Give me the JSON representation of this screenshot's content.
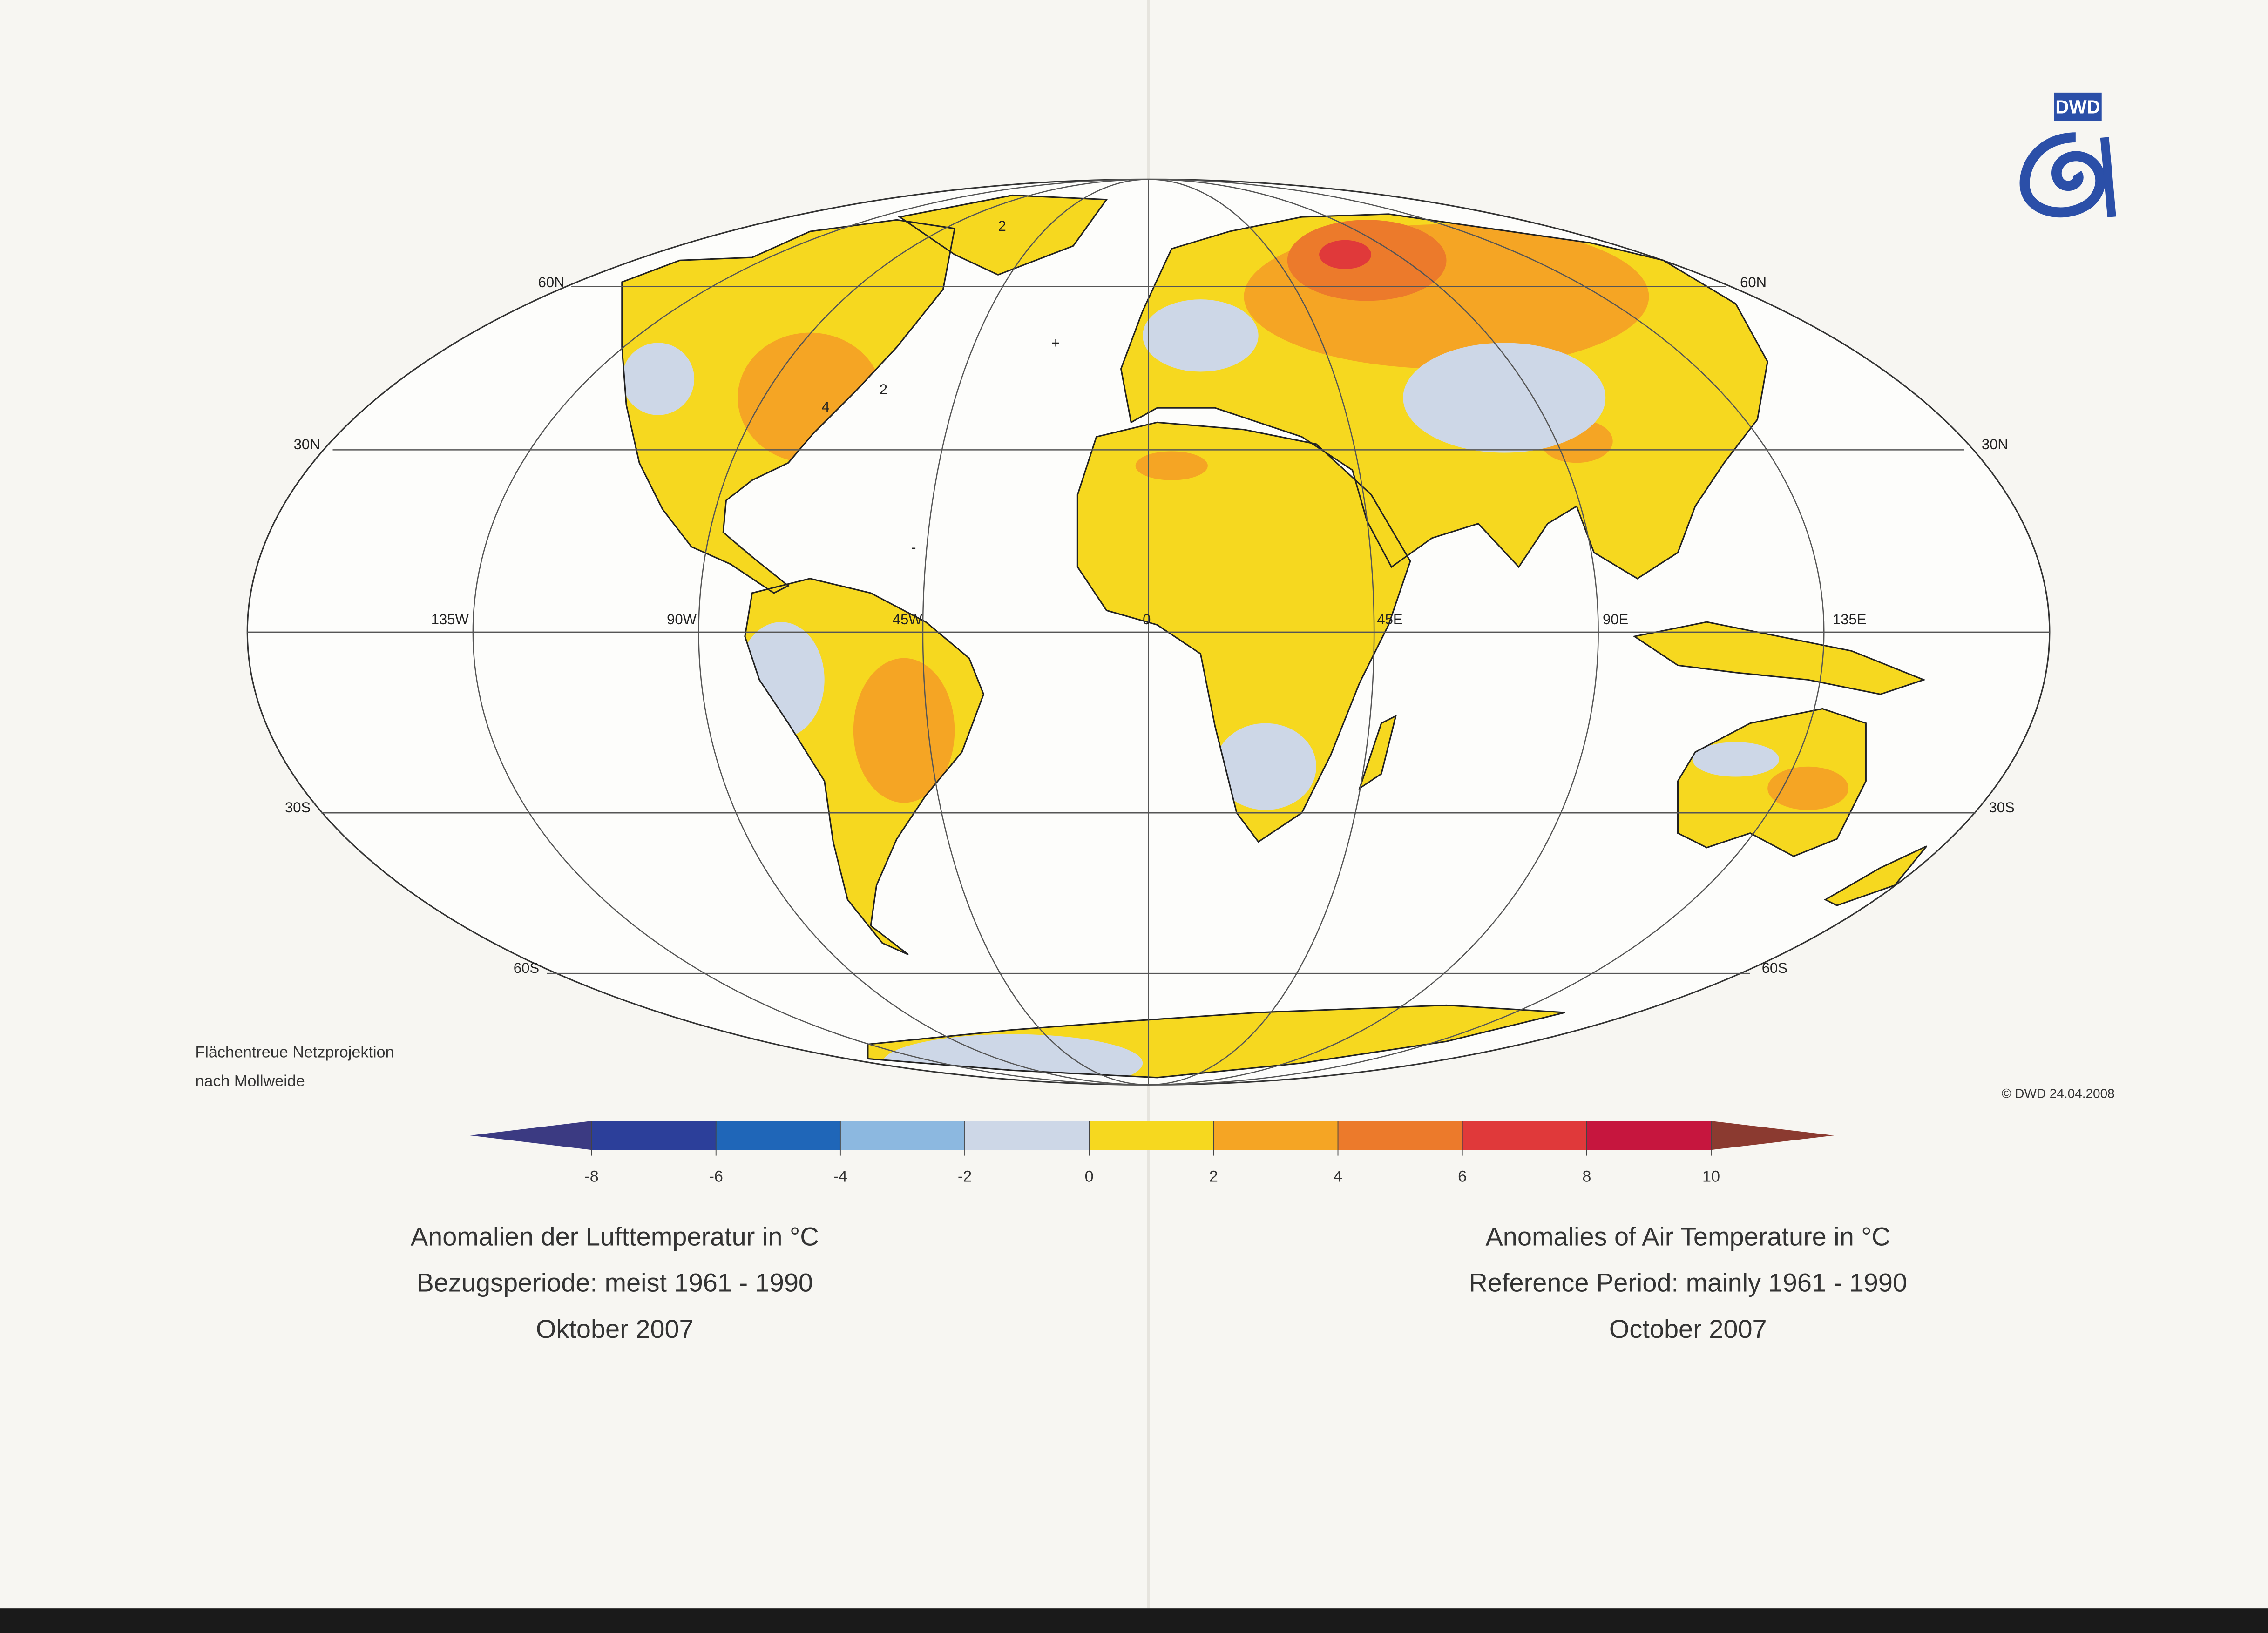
{
  "logo": "DWD",
  "parallel_labels": [
    "60N",
    "30N",
    "30S",
    "60S"
  ],
  "meridian_labels": [
    "135W",
    "90W",
    "45W",
    "0",
    "45E",
    "90E",
    "135E"
  ],
  "contour_labels": [
    "2",
    "4",
    "2",
    "+",
    "-"
  ],
  "projection_note": [
    "Flächentreue Netzprojektion",
    "nach Mollweide"
  ],
  "copyright": "© DWD 24.04.2008",
  "colorbar": {
    "ticks": [
      -8,
      -6,
      -4,
      -2,
      0,
      2,
      4,
      6,
      8,
      10
    ],
    "colors": [
      "#3b3a82",
      "#2c3f9a",
      "#1f66b8",
      "#8cb8e0",
      "#cdd7e7",
      "#f6d81f",
      "#f5a524",
      "#ec7a2b",
      "#e0393a",
      "#c6163e",
      "#8b3a30"
    ]
  },
  "caption_de": [
    "Anomalien der Lufttemperatur in °C",
    "Bezugsperiode: meist 1961 - 1990",
    "Oktober 2007"
  ],
  "caption_en": [
    "Anomalies of Air Temperature in °C",
    "Reference Period: mainly 1961 - 1990",
    "October 2007"
  ]
}
